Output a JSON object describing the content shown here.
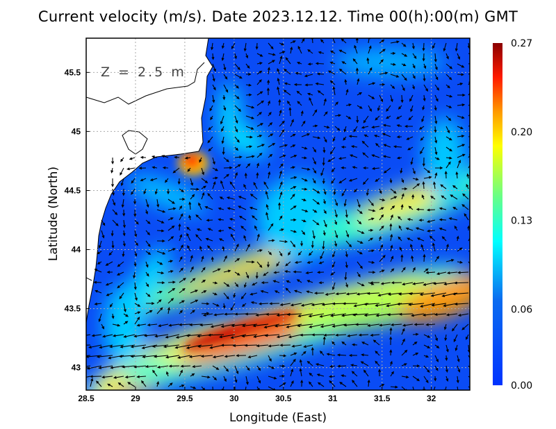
{
  "title": "Current velocity (m/s). Date 2023.12.12. Time 00(h):00(m) GMT",
  "depth_label": "Z = 2.5 m",
  "chart_data": {
    "type": "heatmap",
    "title": "Current velocity (m/s). Date 2023.12.12. Time 00(h):00(m) GMT",
    "xlabel": "Longitude (East)",
    "ylabel": "Latitude (North)",
    "xlim": [
      28.5,
      32.39
    ],
    "ylim": [
      42.81,
      45.79
    ],
    "x_ticks": [
      "28.5",
      "29",
      "29.5",
      "30",
      "30.5",
      "31",
      "31.5",
      "32"
    ],
    "y_ticks": [
      "43",
      "43.5",
      "44",
      "44.5",
      "45",
      "45.5"
    ],
    "colorbar": {
      "min": 0.0,
      "max": 0.27,
      "ticks": [
        "0.00",
        "0.06",
        "0.13",
        "0.20",
        "0.27"
      ]
    },
    "grid": true
  }
}
